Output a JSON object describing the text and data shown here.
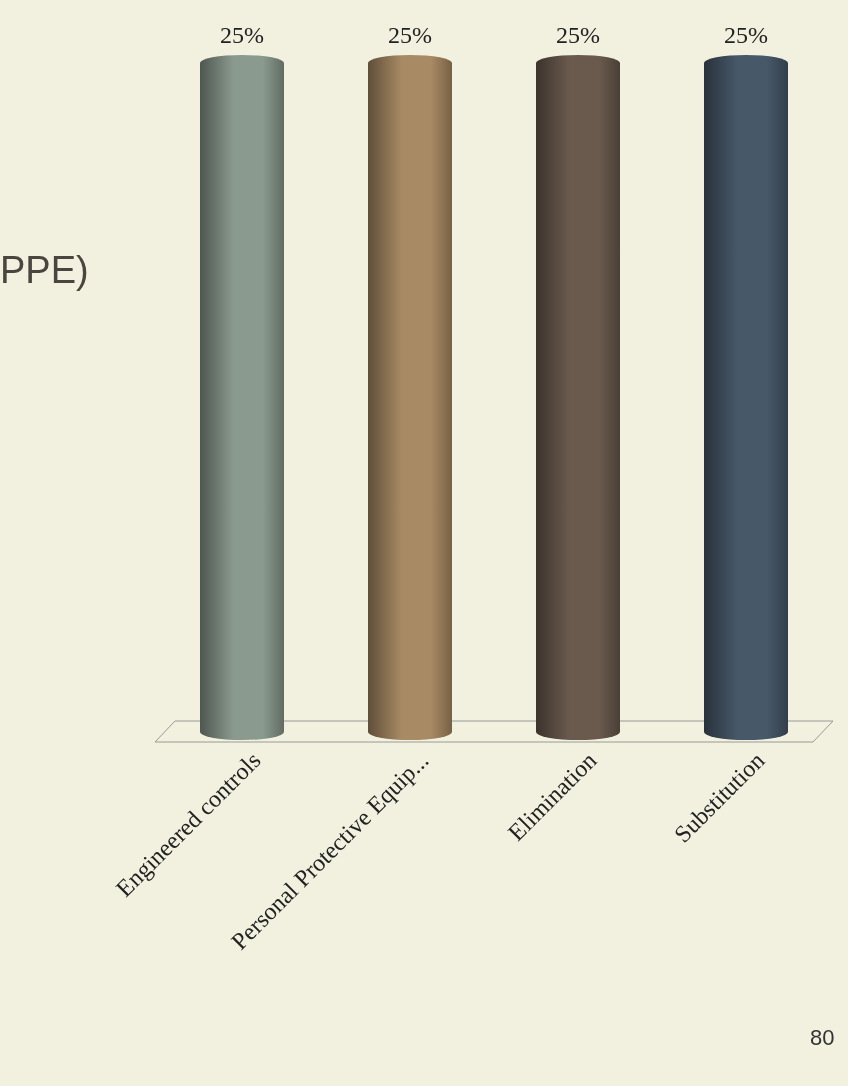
{
  "chart_data": {
    "type": "bar",
    "categories": [
      "Engineered controls",
      "Personal Protective Equip...",
      "Elimination",
      "Substitution"
    ],
    "values": [
      25,
      25,
      25,
      25
    ],
    "colors": [
      "#8a9a8e",
      "#a88a64",
      "#6a5a4e",
      "#475869"
    ],
    "value_labels": [
      "25%",
      "25%",
      "25%",
      "25%"
    ],
    "annotations": [
      "PPE)",
      "80"
    ]
  }
}
